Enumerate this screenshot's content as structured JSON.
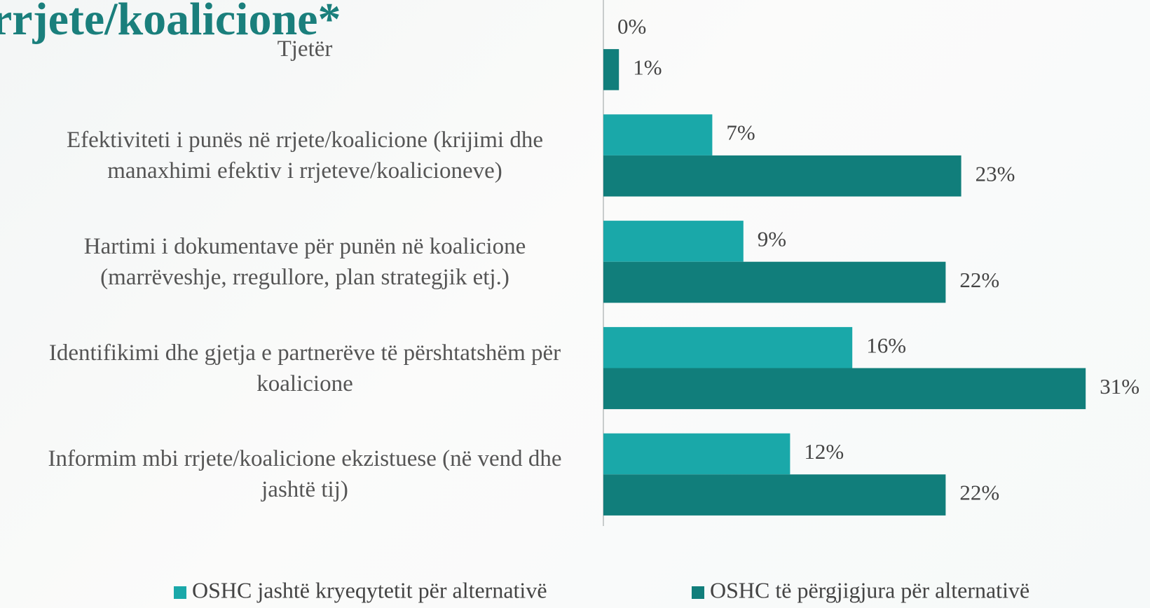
{
  "chart_data": {
    "type": "bar",
    "orientation": "horizontal",
    "title": "rrjete/koalicione*",
    "categories": [
      "Tjetër",
      "Efektiviteti i punës në rrjete/koalicione (krijimi dhe manaxhimi efektiv i rrjeteve/koalicioneve)",
      "Hartimi i dokumentave për punën në koalicione (marrëveshje, rregullore, plan strategjik etj.)",
      "Identifikimi dhe gjetja e partnerëve të përshtatshëm për koalicione",
      "Informim mbi rrjete/koalicione ekzistuese (në vend dhe jashtë tij)"
    ],
    "series": [
      {
        "name": "OSHC jashtë kryeqytetit për alternativë",
        "color": "#1aa8a9",
        "values": [
          0,
          7,
          9,
          16,
          12
        ],
        "value_labels": [
          "0%",
          "7%",
          "9%",
          "16%",
          "12%"
        ]
      },
      {
        "name": "OSHC të përgjigjura për alternativë",
        "color": "#117e7b",
        "values": [
          1,
          23,
          22,
          31,
          22
        ],
        "value_labels": [
          "1%",
          "23%",
          "22%",
          "31%",
          "22%"
        ]
      }
    ],
    "xlim": [
      0,
      35
    ],
    "legend": "bottom"
  }
}
